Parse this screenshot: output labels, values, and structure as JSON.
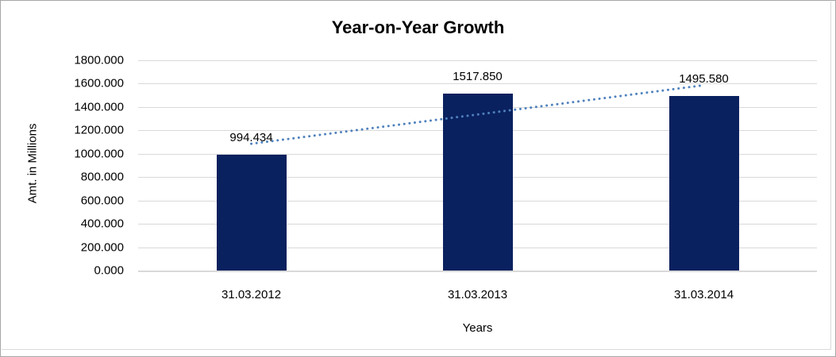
{
  "chart": {
    "title": "Year-on-Year Growth",
    "y_axis_title": "Amt. in Millions",
    "x_axis_title": "Years",
    "y_ticks": [
      "1800.000",
      "1600.000",
      "1400.000",
      "1200.000",
      "1000.000",
      "800.000",
      "600.000",
      "400.000",
      "200.000",
      "0.000"
    ],
    "x_ticks": [
      "31.03.2012",
      "31.03.2013",
      "31.03.2014"
    ],
    "bar_labels": [
      "994.434",
      "1517.850",
      "1495.580"
    ]
  },
  "chart_data": {
    "type": "bar",
    "title": "Year-on-Year Growth",
    "xlabel": "Years",
    "ylabel": "Amt. in Millions",
    "categories": [
      "31.03.2012",
      "31.03.2013",
      "31.03.2014"
    ],
    "values": [
      994.434,
      1517.85,
      1495.58
    ],
    "data_labels": [
      "994.434",
      "1517.850",
      "1495.580"
    ],
    "ylim": [
      0,
      1800
    ],
    "y_tick_step": 200,
    "grid": true,
    "legend": "none",
    "bar_color": "#0a215f",
    "gridline_color": "#d9d9d9",
    "trendline": {
      "type": "linear",
      "style": "dotted",
      "color": "#4f81bd"
    }
  }
}
